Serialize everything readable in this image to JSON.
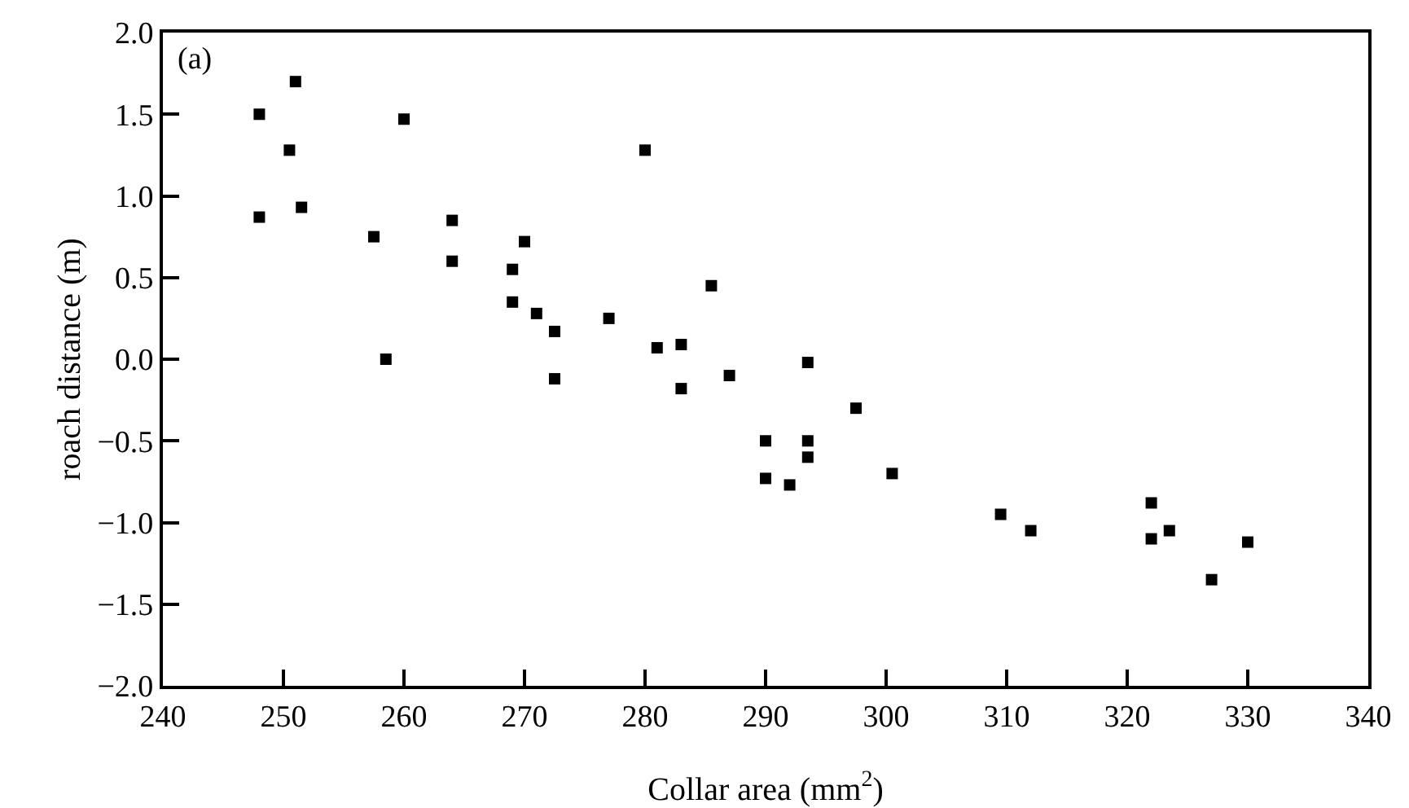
{
  "chart_data": {
    "type": "scatter",
    "xlabel": "Collar area (mm$^{2}$)",
    "ylabel": "roach distance (m)",
    "annotations": [
      "(a)"
    ],
    "x": [
      248,
      248,
      250.5,
      251,
      251.5,
      257.5,
      258.5,
      260,
      264,
      264,
      269,
      269,
      270,
      271,
      272.5,
      272.5,
      277,
      280,
      281,
      283,
      283,
      285.5,
      287,
      290,
      290,
      292,
      293.5,
      293.5,
      293.5,
      297.5,
      300.5,
      309.5,
      312,
      322,
      322,
      323.5,
      327,
      330
    ],
    "series": [
      {
        "color": "#000000",
        "values": [
          1.5,
          0.87,
          1.28,
          1.7,
          0.93,
          0.75,
          0.0,
          1.47,
          0.85,
          0.6,
          0.55,
          0.35,
          0.72,
          0.28,
          0.17,
          -0.12,
          0.25,
          1.28,
          0.07,
          0.09,
          -0.18,
          0.45,
          -0.1,
          -0.5,
          -0.73,
          -0.77,
          -0.02,
          -0.5,
          -0.6,
          -0.3,
          -0.7,
          -0.95,
          -1.05,
          -0.88,
          -1.1,
          -1.05,
          -1.35,
          -1.12
        ]
      }
    ],
    "xlim": [
      240,
      340
    ],
    "xticks": [
      240,
      250,
      260,
      270,
      280,
      290,
      300,
      310,
      320,
      330,
      340
    ],
    "ylim": [
      -2,
      2
    ],
    "yticks": [
      {
        "value": -2,
        "label": "−2.0"
      },
      {
        "value": -1.5,
        "label": "−1.5"
      },
      {
        "value": -1,
        "label": "−1.0"
      },
      {
        "value": -0.5,
        "label": "−0.5"
      },
      {
        "value": 0,
        "label": "0.0"
      },
      {
        "value": 0.5,
        "label": "0.5"
      },
      {
        "value": 1,
        "label": "1.0"
      },
      {
        "value": 1.5,
        "label": "1.5"
      },
      {
        "value": 2,
        "label": "2.0"
      }
    ],
    "grid": false,
    "legend": false,
    "marker": "square"
  }
}
